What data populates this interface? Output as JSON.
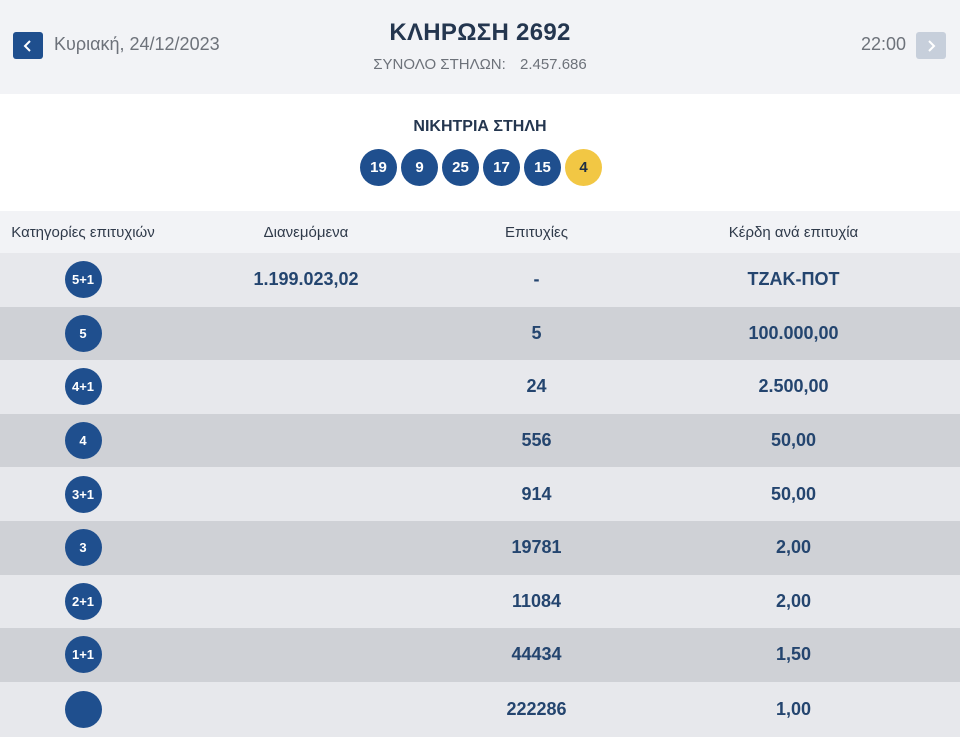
{
  "header": {
    "date": "Κυριακή, 24/12/2023",
    "title": "ΚΛΗΡΩΣΗ 2692",
    "total_label": "ΣΥΝΟΛΟ ΣΤΗΛΩΝ:",
    "total_value": "2.457.686",
    "time": "22:00",
    "prev_icon": "chevron-left-icon",
    "next_icon": "chevron-right-icon"
  },
  "winning": {
    "title": "ΝΙΚΗΤΡΙΑ ΣΤΗΛΗ",
    "numbers": [
      "19",
      "9",
      "25",
      "17",
      "15"
    ],
    "joker": "4"
  },
  "table": {
    "headers": [
      "Κατηγορίες επιτυχιών",
      "Διανεμόμενα",
      "Επιτυχίες",
      "Κέρδη ανά επιτυχία"
    ],
    "rows": [
      {
        "category": "5+1",
        "distributed": "1.199.023,02",
        "winners": "-",
        "prize": "ΤΖΑΚ-ΠΟΤ"
      },
      {
        "category": "5",
        "distributed": "",
        "winners": "5",
        "prize": "100.000,00"
      },
      {
        "category": "4+1",
        "distributed": "",
        "winners": "24",
        "prize": "2.500,00"
      },
      {
        "category": "4",
        "distributed": "",
        "winners": "556",
        "prize": "50,00"
      },
      {
        "category": "3+1",
        "distributed": "",
        "winners": "914",
        "prize": "50,00"
      },
      {
        "category": "3",
        "distributed": "",
        "winners": "19781",
        "prize": "2,00"
      },
      {
        "category": "2+1",
        "distributed": "",
        "winners": "11084",
        "prize": "2,00"
      },
      {
        "category": "1+1",
        "distributed": "",
        "winners": "44434",
        "prize": "1,50"
      },
      {
        "category": "",
        "distributed": "",
        "winners": "222286",
        "prize": "1,00"
      }
    ]
  },
  "colors": {
    "primary": "#1f4f8e",
    "joker": "#f2c744",
    "row_light": "#e7e8ec",
    "row_dark": "#cfd1d6"
  }
}
